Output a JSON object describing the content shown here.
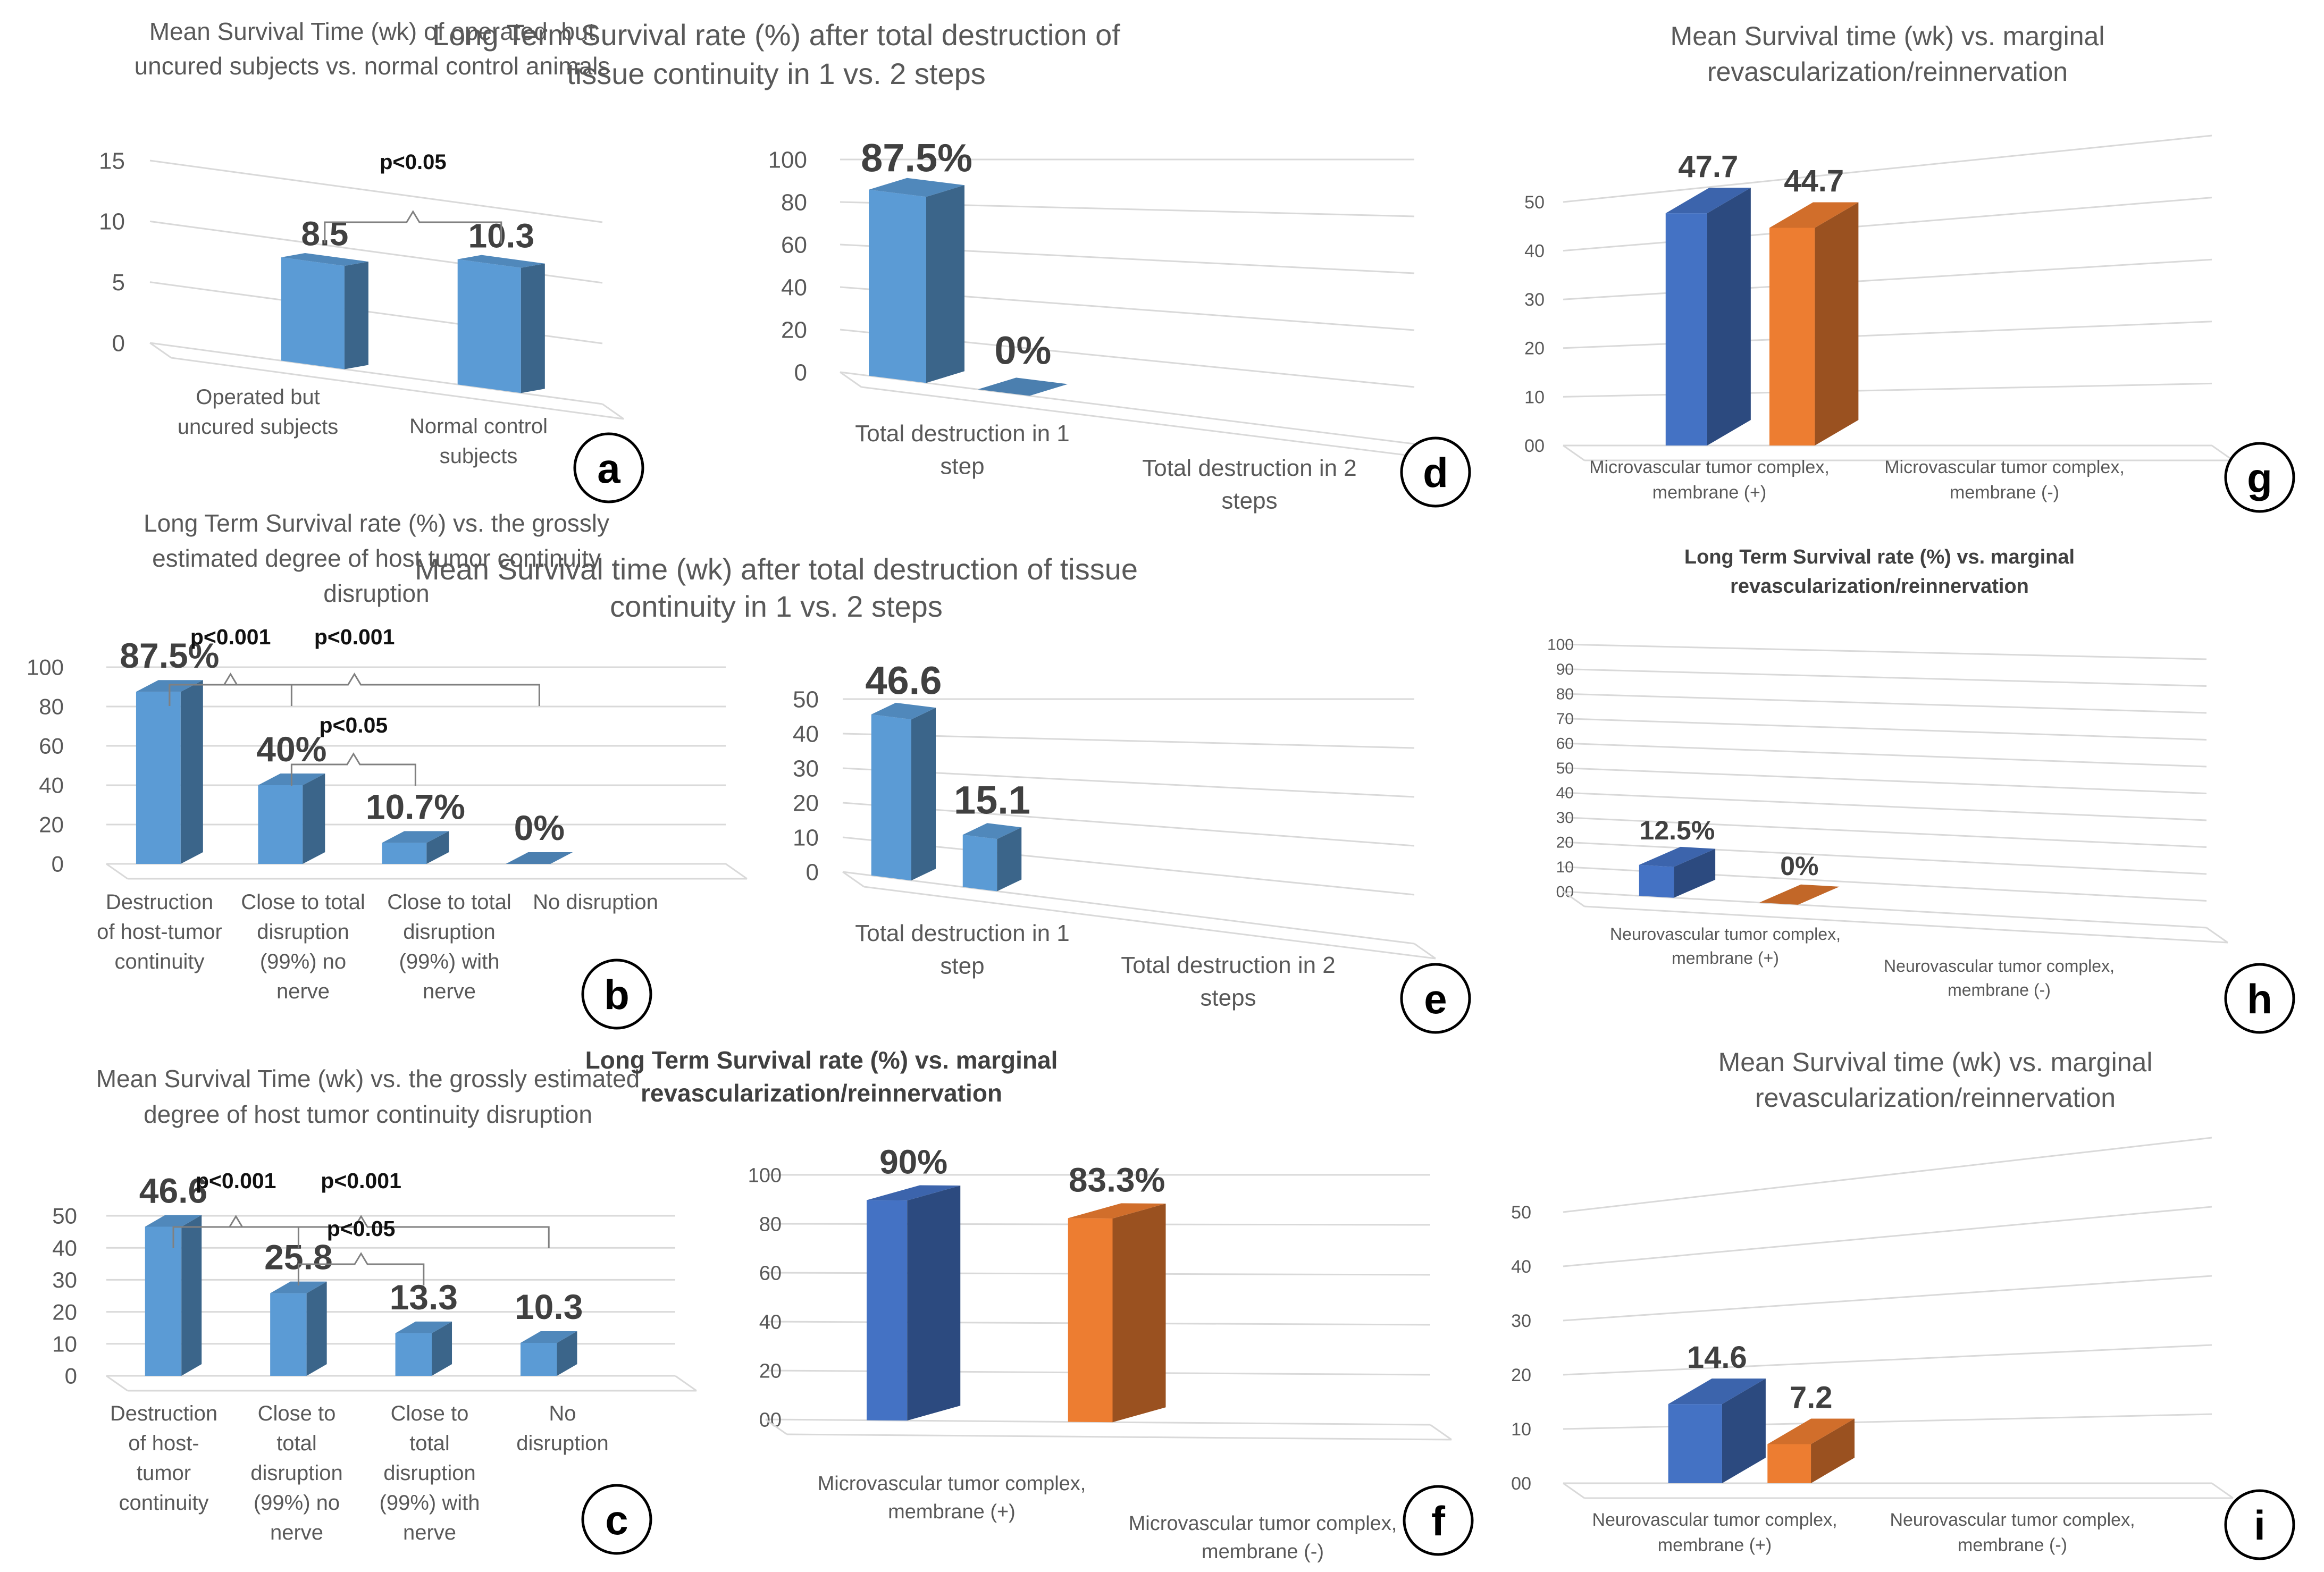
{
  "figure": {
    "panel_letters": [
      "a",
      "b",
      "c",
      "d",
      "e",
      "f",
      "g",
      "h",
      "i"
    ]
  },
  "chart_data": [
    {
      "id": "a",
      "type": "bar",
      "title": [
        "Mean Survival Time (wk) of operated, but",
        "uncured subjects vs. normal control animals"
      ],
      "categories": [
        [
          "Operated but",
          "uncured subjects"
        ],
        [
          "Normal control",
          "subjects"
        ]
      ],
      "values": [
        8.5,
        10.3
      ],
      "labels": [
        "8.5",
        "10.3"
      ],
      "yticks": [
        "0",
        "5",
        "10",
        "15"
      ],
      "ylim": [
        0,
        15
      ],
      "significance": [
        {
          "text": "p<0.05",
          "from": 0,
          "to": 1
        }
      ],
      "colors": [
        "#5b9bd5",
        "#5b9bd5"
      ]
    },
    {
      "id": "b",
      "type": "bar",
      "title": [
        "Long Term Survival rate (%) vs. the grossly",
        "estimated degree of host tumor continuity",
        "disruption"
      ],
      "categories": [
        [
          "Destruction",
          "of host-tumor",
          "continuity"
        ],
        [
          "Close to total",
          "disruption",
          "(99%) no",
          "nerve"
        ],
        [
          "Close to total",
          "disruption",
          "(99%) with",
          "nerve"
        ],
        [
          "No disruption"
        ]
      ],
      "values": [
        87.5,
        40,
        10.7,
        0
      ],
      "labels": [
        "87.5%",
        "40%",
        "10.7%",
        "0%"
      ],
      "yticks": [
        "0",
        "20",
        "40",
        "60",
        "80",
        "100"
      ],
      "ylim": [
        0,
        100
      ],
      "significance": [
        {
          "text": "p<0.001",
          "from": 0,
          "to": 1
        },
        {
          "text": "p<0.001",
          "from": 0,
          "to": 3
        },
        {
          "text": "p<0.05",
          "from": 1,
          "to": 2
        }
      ],
      "colors": [
        "#5b9bd5",
        "#5b9bd5",
        "#5b9bd5",
        "#5b9bd5"
      ]
    },
    {
      "id": "c",
      "type": "bar",
      "title": [
        "Mean Survival Time (wk) vs. the grossly estimated",
        "degree of host tumor continuity disruption"
      ],
      "categories": [
        [
          "Destruction",
          "of host-",
          "tumor",
          "continuity"
        ],
        [
          "Close to",
          "total",
          "disruption",
          "(99%) no",
          "nerve"
        ],
        [
          "Close to",
          "total",
          "disruption",
          "(99%) with",
          "nerve"
        ],
        [
          "No",
          "disruption"
        ]
      ],
      "values": [
        46.6,
        25.8,
        13.3,
        10.3
      ],
      "labels": [
        "46.6",
        "25.8",
        "13.3",
        "10.3"
      ],
      "yticks": [
        "0",
        "10",
        "20",
        "30",
        "40",
        "50"
      ],
      "ylim": [
        0,
        50
      ],
      "significance": [
        {
          "text": "p<0.001",
          "from": 0,
          "to": 1
        },
        {
          "text": "p<0.001",
          "from": 0,
          "to": 3
        },
        {
          "text": "p<0.05",
          "from": 1,
          "to": 2
        }
      ],
      "colors": [
        "#5b9bd5",
        "#5b9bd5",
        "#5b9bd5",
        "#5b9bd5"
      ]
    },
    {
      "id": "d",
      "type": "bar",
      "title": [
        "Long Term Survival rate (%) after total  destruction of",
        "tissue continuity in 1 vs. 2 steps"
      ],
      "categories": [
        [
          "Total destruction in 1",
          "step"
        ],
        [
          "Total destruction in 2",
          "steps"
        ]
      ],
      "values": [
        87.5,
        0
      ],
      "labels": [
        "87.5%",
        "0%"
      ],
      "yticks": [
        "0",
        "20",
        "40",
        "60",
        "80",
        "100"
      ],
      "ylim": [
        0,
        100
      ],
      "significance": [],
      "colors": [
        "#5b9bd5",
        "#5b9bd5"
      ]
    },
    {
      "id": "e",
      "type": "bar",
      "title": [
        "Mean Survival time (wk) after total destruction of tissue",
        "continuity in 1 vs. 2 steps"
      ],
      "categories": [
        [
          "Total destruction in 1",
          "step"
        ],
        [
          "Total destruction in 2",
          "steps"
        ]
      ],
      "values": [
        46.6,
        15.1
      ],
      "labels": [
        "46.6",
        "15.1"
      ],
      "yticks": [
        "0",
        "10",
        "20",
        "30",
        "40",
        "50"
      ],
      "ylim": [
        0,
        50
      ],
      "significance": [],
      "colors": [
        "#5b9bd5",
        "#5b9bd5"
      ]
    },
    {
      "id": "f",
      "type": "bar",
      "title": [
        "Long Term Survival rate (%) vs. marginal",
        "revascularization/reinnervation"
      ],
      "categories": [
        [
          "Microvascular tumor complex,",
          "membrane (+)"
        ],
        [
          "Microvascular tumor complex,",
          "membrane (-)"
        ]
      ],
      "values": [
        90,
        83.3
      ],
      "labels": [
        "90%",
        "83.3%"
      ],
      "yticks": [
        "00",
        "20",
        "40",
        "60",
        "80",
        "100"
      ],
      "ylim": [
        0,
        100
      ],
      "significance": [],
      "colors": [
        "#4472c4",
        "#ed7d31"
      ]
    },
    {
      "id": "g",
      "type": "bar",
      "title": [
        "Mean Survival time (wk) vs. marginal",
        "revascularization/reinnervation"
      ],
      "categories": [
        [
          "Microvascular tumor complex,",
          "membrane (+)"
        ],
        [
          "Microvascular tumor complex,",
          "membrane (-)"
        ]
      ],
      "values": [
        47.7,
        44.7
      ],
      "labels": [
        "47.7",
        "44.7"
      ],
      "yticks": [
        "00",
        "10",
        "20",
        "30",
        "40",
        "50"
      ],
      "ylim": [
        0,
        50
      ],
      "significance": [],
      "colors": [
        "#4472c4",
        "#ed7d31"
      ]
    },
    {
      "id": "h",
      "type": "bar",
      "title": [
        "Long Term Survival rate (%) vs. marginal",
        "revascularization/reinnervation"
      ],
      "categories": [
        [
          "Neurovascular tumor complex,",
          "membrane (+)"
        ],
        [
          "Neurovascular tumor complex,",
          "membrane (-)"
        ]
      ],
      "values": [
        12.5,
        0
      ],
      "labels": [
        "12.5%",
        "0%"
      ],
      "yticks": [
        "00",
        "10",
        "20",
        "30",
        "40",
        "50",
        "60",
        "70",
        "80",
        "90",
        "100"
      ],
      "ylim": [
        0,
        100
      ],
      "significance": [],
      "colors": [
        "#4472c4",
        "#ed7d31"
      ]
    },
    {
      "id": "i",
      "type": "bar",
      "title": [
        "Mean Survival time (wk) vs. marginal",
        "revascularization/reinnervation"
      ],
      "categories": [
        [
          "Neurovascular tumor complex,",
          "membrane (+)"
        ],
        [
          "Neurovascular tumor complex,",
          "membrane (-)"
        ]
      ],
      "values": [
        14.6,
        7.2
      ],
      "labels": [
        "14.6",
        "7.2"
      ],
      "yticks": [
        "00",
        "10",
        "20",
        "30",
        "40",
        "50"
      ],
      "ylim": [
        0,
        50
      ],
      "significance": [],
      "colors": [
        "#4472c4",
        "#ed7d31"
      ]
    }
  ]
}
